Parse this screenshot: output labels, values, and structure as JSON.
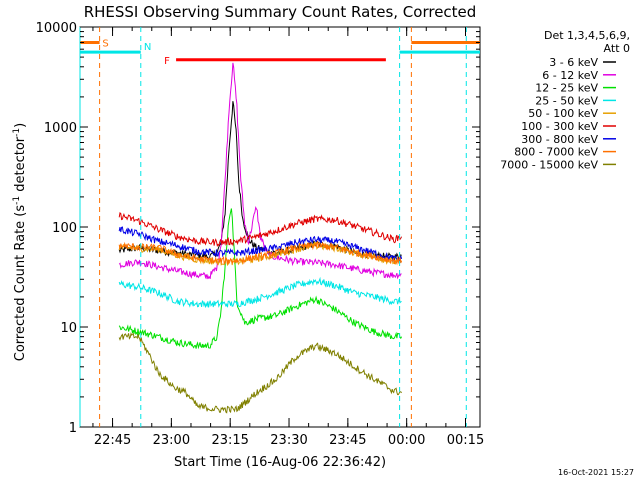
{
  "chart_data": {
    "type": "line",
    "title": "RHESSI Observing Summary Count Rates, Corrected",
    "xlabel": "Start Time (16-Aug-06 22:36:42)",
    "ylabel_parts": [
      "Corrected Count Rate (s",
      "-1",
      " detector",
      "-1",
      ")"
    ],
    "y_scale": "log",
    "ylim": [
      1,
      10000
    ],
    "y_ticks": [
      {
        "value": 1,
        "label": "1"
      },
      {
        "value": 10,
        "label": "10"
      },
      {
        "value": 100,
        "label": "100"
      },
      {
        "value": 1000,
        "label": "1000"
      },
      {
        "value": 10000,
        "label": "10000"
      }
    ],
    "x_unit": "minutes since 22:36:42",
    "xlim": [
      0,
      102
    ],
    "x_ticks": [
      {
        "value": 8.3,
        "label": "22:45"
      },
      {
        "value": 23.3,
        "label": "23:00"
      },
      {
        "value": 38.3,
        "label": "23:15"
      },
      {
        "value": 53.3,
        "label": "23:30"
      },
      {
        "value": 68.3,
        "label": "23:45"
      },
      {
        "value": 83.3,
        "label": "00:00"
      },
      {
        "value": 98.3,
        "label": "00:15"
      }
    ],
    "legend_header": [
      "Det 1,3,4,5,6,9,",
      "Att 0"
    ],
    "legend_placement": "top-right, outside plot",
    "series": [
      {
        "name": "3 - 6 keV",
        "color": "#000000",
        "points": [
          [
            10,
            58
          ],
          [
            15,
            62
          ],
          [
            20,
            58
          ],
          [
            25,
            55
          ],
          [
            30,
            52
          ],
          [
            33,
            50
          ],
          [
            35,
            56
          ],
          [
            36,
            70
          ],
          [
            37,
            140
          ],
          [
            38,
            600
          ],
          [
            39,
            1800
          ],
          [
            39.8,
            900
          ],
          [
            40.5,
            280
          ],
          [
            41.5,
            120
          ],
          [
            43,
            75
          ],
          [
            45,
            62
          ],
          [
            50,
            55
          ],
          [
            55,
            60
          ],
          [
            60,
            68
          ],
          [
            65,
            65
          ],
          [
            70,
            55
          ],
          [
            75,
            52
          ],
          [
            80,
            50
          ],
          [
            82,
            52
          ]
        ]
      },
      {
        "name": "6 - 12 keV",
        "color": "#e000e0",
        "points": [
          [
            10,
            42
          ],
          [
            15,
            45
          ],
          [
            20,
            40
          ],
          [
            25,
            36
          ],
          [
            30,
            33
          ],
          [
            33,
            32
          ],
          [
            35,
            40
          ],
          [
            36,
            70
          ],
          [
            37,
            300
          ],
          [
            38,
            1500
          ],
          [
            39,
            4500
          ],
          [
            40,
            1600
          ],
          [
            41,
            300
          ],
          [
            42,
            110
          ],
          [
            43,
            70
          ],
          [
            44,
            110
          ],
          [
            45,
            160
          ],
          [
            46,
            80
          ],
          [
            48,
            52
          ],
          [
            55,
            45
          ],
          [
            60,
            44
          ],
          [
            65,
            42
          ],
          [
            70,
            38
          ],
          [
            75,
            35
          ],
          [
            80,
            33
          ],
          [
            82,
            34
          ]
        ]
      },
      {
        "name": "12 - 25 keV",
        "color": "#00e000",
        "points": [
          [
            10,
            10
          ],
          [
            15,
            9
          ],
          [
            20,
            8
          ],
          [
            25,
            7
          ],
          [
            30,
            6.5
          ],
          [
            33,
            6.5
          ],
          [
            35,
            8
          ],
          [
            36,
            15
          ],
          [
            37,
            40
          ],
          [
            38,
            120
          ],
          [
            38.6,
            165
          ],
          [
            39.3,
            60
          ],
          [
            40,
            18
          ],
          [
            42,
            11
          ],
          [
            45,
            12
          ],
          [
            50,
            13
          ],
          [
            55,
            16
          ],
          [
            60,
            19
          ],
          [
            65,
            15
          ],
          [
            70,
            11
          ],
          [
            75,
            9
          ],
          [
            80,
            8
          ],
          [
            82,
            8
          ]
        ]
      },
      {
        "name": "25 - 50 keV",
        "color": "#00e6e6",
        "points": [
          [
            10,
            27
          ],
          [
            15,
            25
          ],
          [
            20,
            22
          ],
          [
            25,
            18
          ],
          [
            30,
            17
          ],
          [
            35,
            17
          ],
          [
            40,
            17
          ],
          [
            45,
            19
          ],
          [
            50,
            22
          ],
          [
            55,
            26
          ],
          [
            60,
            29
          ],
          [
            65,
            26
          ],
          [
            70,
            22
          ],
          [
            75,
            20
          ],
          [
            80,
            18
          ],
          [
            82,
            18
          ]
        ]
      },
      {
        "name": "50 - 100 keV",
        "color": "#e6a000",
        "points": [
          [
            10,
            63
          ],
          [
            15,
            61
          ],
          [
            20,
            60
          ],
          [
            25,
            52
          ],
          [
            30,
            47
          ],
          [
            35,
            45
          ],
          [
            40,
            45
          ],
          [
            45,
            48
          ],
          [
            50,
            53
          ],
          [
            55,
            60
          ],
          [
            60,
            65
          ],
          [
            65,
            62
          ],
          [
            70,
            55
          ],
          [
            75,
            50
          ],
          [
            80,
            45
          ],
          [
            82,
            45
          ]
        ]
      },
      {
        "name": "100 - 300 keV",
        "color": "#e00000",
        "points": [
          [
            10,
            130
          ],
          [
            15,
            115
          ],
          [
            20,
            95
          ],
          [
            25,
            80
          ],
          [
            30,
            72
          ],
          [
            35,
            70
          ],
          [
            40,
            72
          ],
          [
            45,
            80
          ],
          [
            50,
            92
          ],
          [
            55,
            108
          ],
          [
            60,
            120
          ],
          [
            65,
            118
          ],
          [
            70,
            102
          ],
          [
            75,
            88
          ],
          [
            80,
            75
          ],
          [
            82,
            80
          ]
        ]
      },
      {
        "name": "300 - 800 keV",
        "color": "#0000e6",
        "points": [
          [
            10,
            95
          ],
          [
            15,
            85
          ],
          [
            20,
            72
          ],
          [
            25,
            65
          ],
          [
            30,
            57
          ],
          [
            35,
            55
          ],
          [
            40,
            55
          ],
          [
            45,
            58
          ],
          [
            50,
            62
          ],
          [
            55,
            70
          ],
          [
            60,
            75
          ],
          [
            65,
            72
          ],
          [
            70,
            63
          ],
          [
            75,
            55
          ],
          [
            80,
            48
          ],
          [
            82,
            48
          ]
        ]
      },
      {
        "name": "800 - 7000 keV",
        "color": "#ff7000",
        "points": [
          [
            10,
            65
          ],
          [
            15,
            63
          ],
          [
            20,
            62
          ],
          [
            25,
            53
          ],
          [
            30,
            48
          ],
          [
            35,
            46
          ],
          [
            40,
            46
          ],
          [
            45,
            50
          ],
          [
            50,
            55
          ],
          [
            55,
            62
          ],
          [
            60,
            66
          ],
          [
            65,
            63
          ],
          [
            70,
            56
          ],
          [
            75,
            51
          ],
          [
            80,
            46
          ],
          [
            82,
            46
          ]
        ]
      },
      {
        "name": "7000 - 15000 keV",
        "color": "#808000",
        "points": [
          [
            10,
            8
          ],
          [
            15,
            8
          ],
          [
            18,
            5
          ],
          [
            20,
            3.5
          ],
          [
            24,
            2.5
          ],
          [
            27,
            2.2
          ],
          [
            30,
            1.6
          ],
          [
            35,
            1.5
          ],
          [
            40,
            1.5
          ],
          [
            45,
            2.2
          ],
          [
            50,
            3
          ],
          [
            55,
            5
          ],
          [
            60,
            6.5
          ],
          [
            65,
            5.5
          ],
          [
            70,
            4
          ],
          [
            75,
            3
          ],
          [
            80,
            2.3
          ],
          [
            82,
            2.2
          ]
        ]
      }
    ],
    "annotations": [
      {
        "label": "S",
        "color": "#ff7000",
        "segments": [
          [
            [
              0,
              7000
            ],
            [
              5,
              7000
            ]
          ],
          [
            [
              84.5,
              7000
            ],
            [
              102,
              7000
            ]
          ]
        ],
        "vlines": [
          5,
          84.5
        ]
      },
      {
        "label": "N",
        "color": "#00e6e6",
        "segments": [
          [
            [
              0,
              5600
            ],
            [
              15.5,
              5600
            ]
          ],
          [
            [
              81.5,
              5600
            ],
            [
              102,
              5600
            ]
          ]
        ],
        "vlines": [
          15.5,
          81.5,
          0
        ]
      },
      {
        "label": "F",
        "color": "#ff0000",
        "segments": [
          [
            [
              24.5,
              4700
            ],
            [
              78,
              4700
            ]
          ]
        ],
        "vlines": []
      }
    ],
    "extra_vlines": [
      {
        "x": 98.5,
        "color": "#00e6e6"
      }
    ],
    "grid": false
  },
  "footer": {
    "timestamp": "16-Oct-2021 15:27"
  }
}
